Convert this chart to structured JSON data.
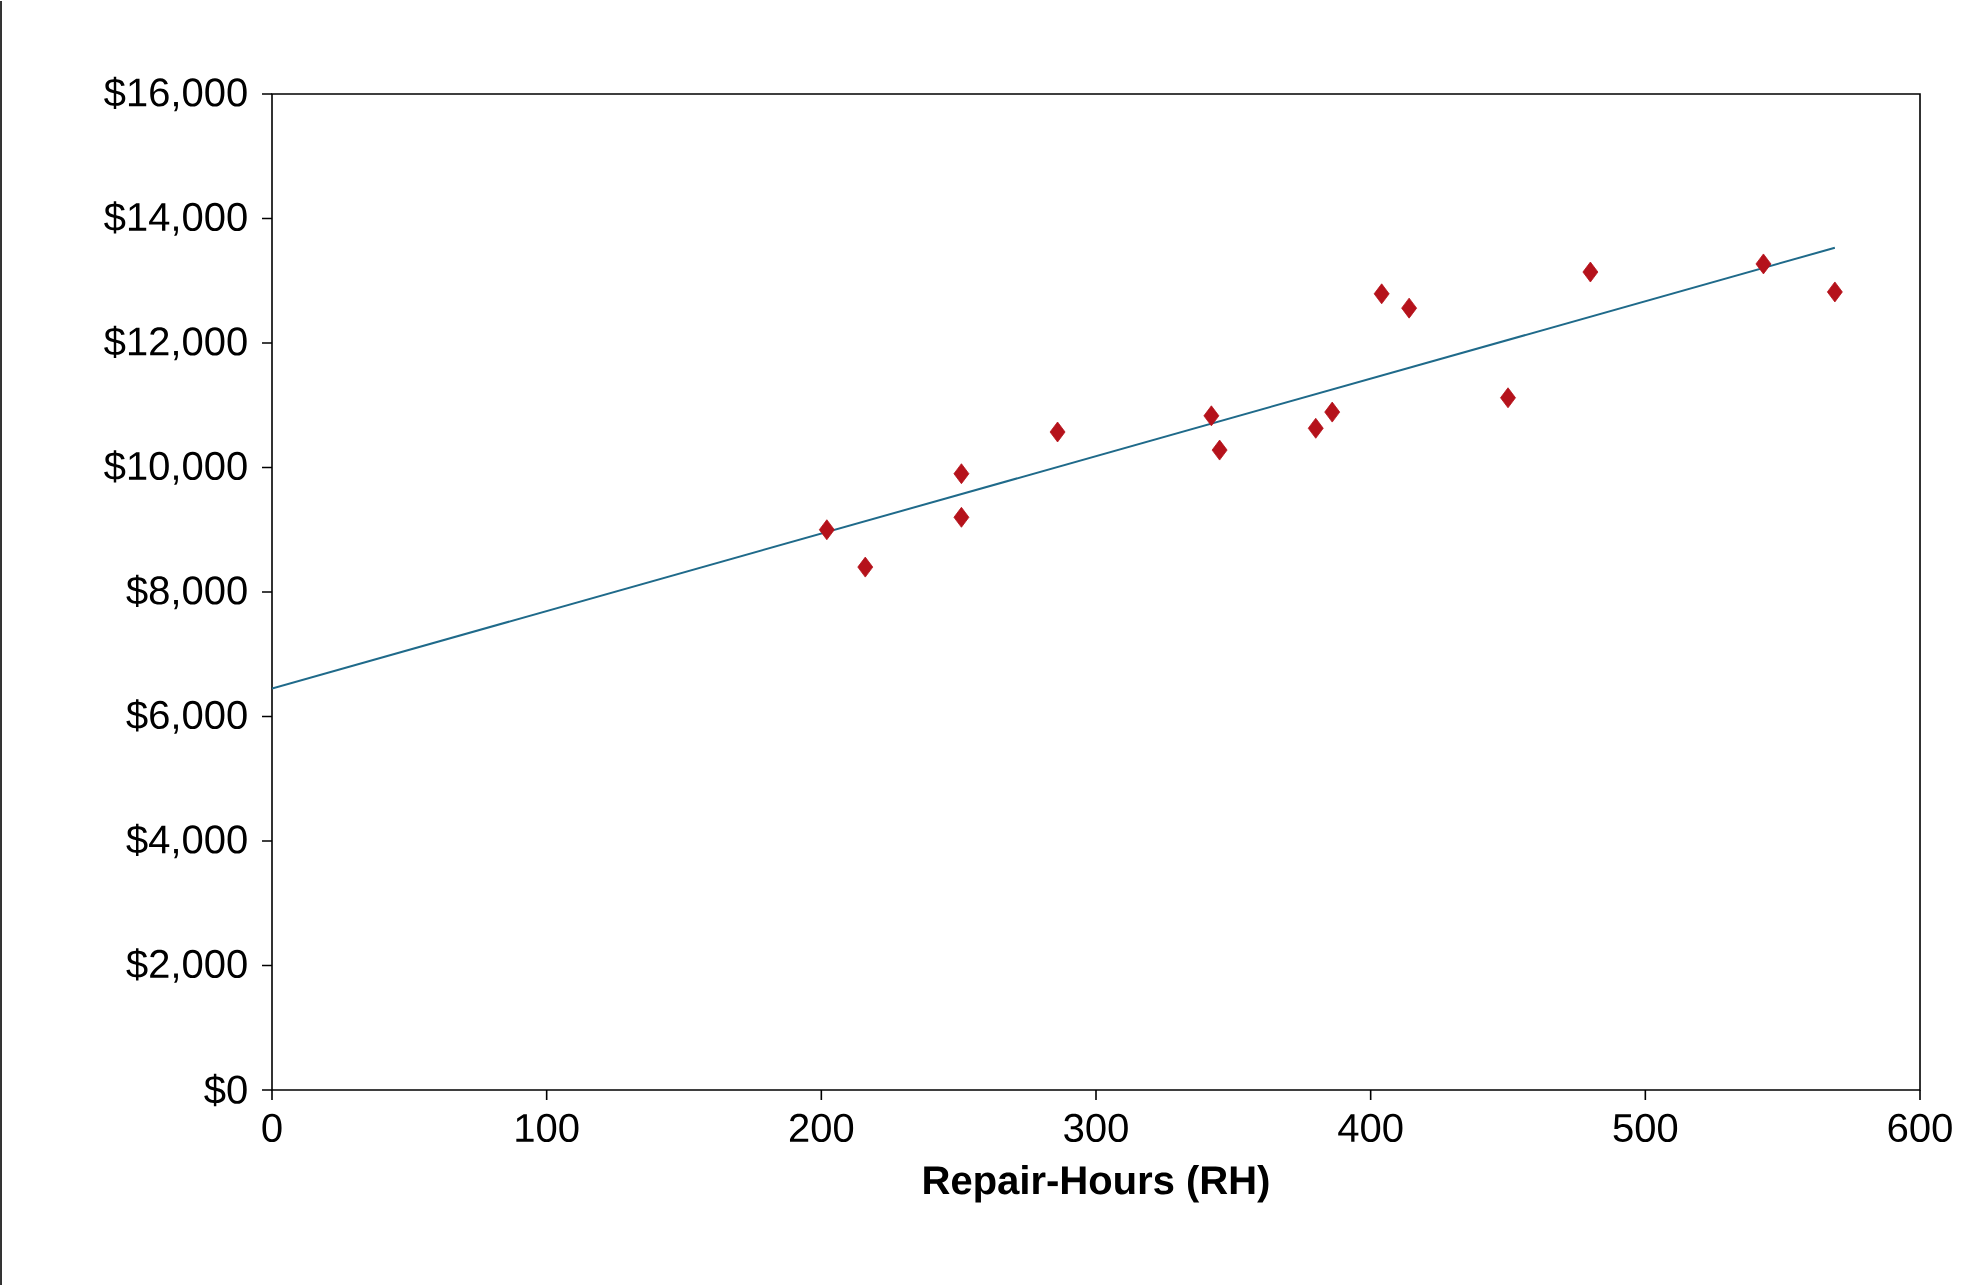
{
  "chart_data": {
    "type": "scatter",
    "xlabel": "**Repair-Hours (RH)**",
    "xlim": [
      0,
      600
    ],
    "xticks": [
      0,
      100,
      200,
      300,
      400,
      500,
      600
    ],
    "ylim": [
      0,
      16000
    ],
    "yticks": [
      {
        "value": 0,
        "label": "$0"
      },
      {
        "value": 2000,
        "label": "$2,000"
      },
      {
        "value": 4000,
        "label": "$4,000"
      },
      {
        "value": 6000,
        "label": "$6,000"
      },
      {
        "value": 8000,
        "label": "$8,000"
      },
      {
        "value": 10000,
        "label": "$10,000"
      },
      {
        "value": 12000,
        "label": "$12,000"
      },
      {
        "value": 14000,
        "label": "$14,000"
      },
      {
        "value": 16000,
        "label": "$16,000"
      }
    ],
    "grid": false,
    "series": [
      {
        "color": "#b5121b",
        "marker": "diamond",
        "x": [
          202,
          216,
          251,
          251,
          286,
          342,
          345,
          380,
          386,
          404,
          414,
          450,
          480,
          543,
          569
        ],
        "values": [
          9000,
          8400,
          9900,
          9200,
          10570,
          10830,
          10280,
          10630,
          10890,
          12790,
          12560,
          11120,
          13140,
          13270,
          12820
        ]
      },
      {
        "type": "line",
        "color": "#1f6a8a",
        "marker": "none",
        "line_style": "solid",
        "x": [
          0,
          569
        ],
        "values": [
          6450,
          13530
        ]
      }
    ]
  }
}
